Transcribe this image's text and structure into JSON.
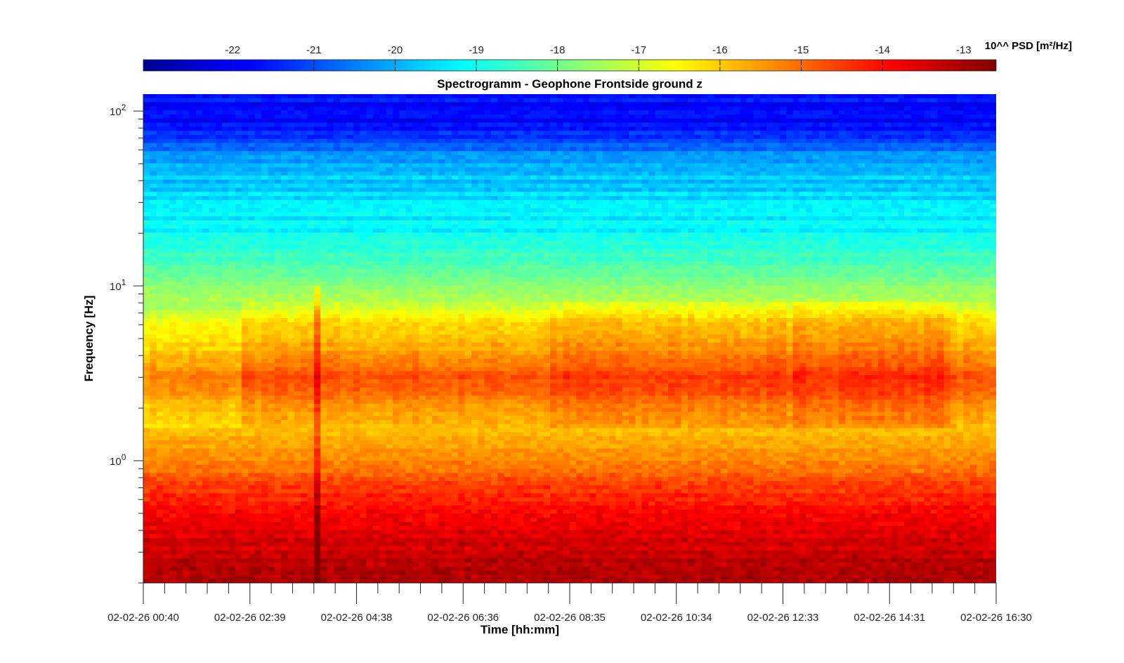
{
  "chart_data": {
    "type": "heatmap",
    "title": "Spectrogramm - Geophone Frontside ground z",
    "xlabel": "Time [hh:mm]",
    "ylabel": "Frequency [Hz]",
    "y_scale": "log",
    "ylim": [
      0.2,
      125
    ],
    "y_major_ticks": [
      {
        "value": 1,
        "label": "10",
        "exp": "0"
      },
      {
        "value": 10,
        "label": "10",
        "exp": "1"
      },
      {
        "value": 100,
        "label": "10",
        "exp": "2"
      }
    ],
    "x_tick_labels": [
      "02-02-26 00:40",
      "02-02-26 02:39",
      "02-02-26 04:38",
      "02-02-26 06:36",
      "02-02-26 08:35",
      "02-02-26 10:34",
      "02-02-26 12:33",
      "02-02-26 14:31",
      "02-02-26 16:30"
    ],
    "colorbar": {
      "title": "10^^ PSD [m²/Hz]",
      "colormap": "jet",
      "range": [
        -23.1,
        -12.6
      ],
      "ticks": [
        -22,
        -21,
        -20,
        -19,
        -18,
        -17,
        -16,
        -15,
        -14,
        -13
      ],
      "tick_labels": [
        "-22",
        "-21",
        "-20",
        "-19",
        "-18",
        "-17",
        "-16",
        "-15",
        "-14",
        "-13"
      ]
    },
    "profile_description_values": {
      "frequency_hz": [
        125,
        100,
        80,
        60,
        40,
        25,
        15,
        10,
        8,
        6,
        4,
        3,
        2,
        1.5,
        1,
        0.7,
        0.5,
        0.35,
        0.25,
        0.2
      ],
      "log10_psd_typical": [
        -21.5,
        -21.8,
        -21.6,
        -20.6,
        -19.7,
        -19.4,
        -18.6,
        -17.8,
        -17.3,
        -16.3,
        -15.6,
        -14.9,
        -15.6,
        -15.9,
        -15.3,
        -14.6,
        -13.9,
        -13.6,
        -13.2,
        -13.0
      ]
    },
    "grid": false,
    "legend": "none"
  }
}
